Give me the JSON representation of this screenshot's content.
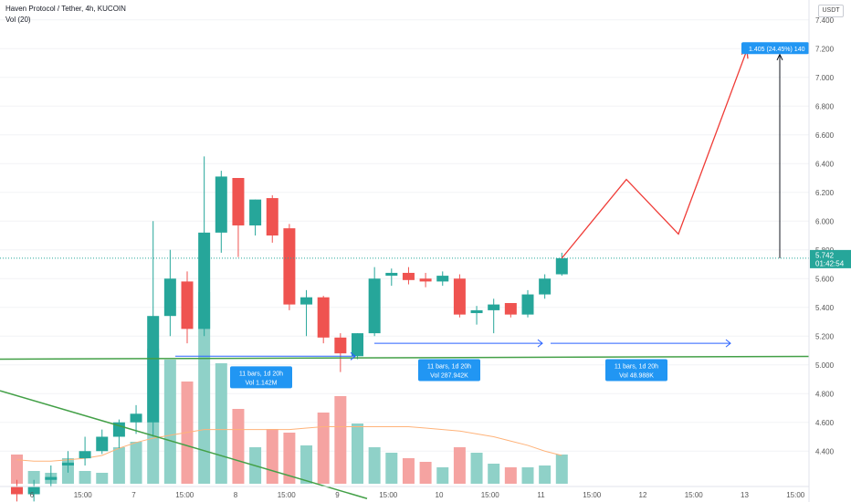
{
  "header": {
    "symbol_line": "Haven Protocol / Tether, 4h, KUCOIN",
    "indicator_line": "Vol (20)"
  },
  "currency_label": "USDT",
  "colors": {
    "up": "#26a69a",
    "down": "#ef5350",
    "up_volume": "#8fd1c8",
    "down_volume": "#f5a3a1",
    "accent_blue": "#2962ff",
    "label_blue": "#2196f3",
    "trend_green": "#43a047",
    "projection_red": "#ef3b36"
  },
  "chart_data": {
    "type": "candlestick",
    "y_ticks": [
      4.4,
      4.6,
      4.8,
      5.0,
      5.2,
      5.4,
      5.6,
      5.8,
      6.0,
      6.2,
      6.4,
      6.6,
      6.8,
      7.0,
      7.2,
      7.4
    ],
    "y_tick_labels": [
      "4.400",
      "4.600",
      "4.800",
      "5.000",
      "5.200",
      "5.400",
      "5.600",
      "5.800",
      "6.000",
      "6.200",
      "6.400",
      "6.600",
      "6.800",
      "7.000",
      "7.200",
      "7.400"
    ],
    "x_labels": [
      "6",
      "15:00",
      "7",
      "15:00",
      "8",
      "15:00",
      "9",
      "15:00",
      "10",
      "15:00",
      "11",
      "15:00",
      "12",
      "15:00",
      "13",
      "15:00"
    ],
    "candles": [
      {
        "o": 4.15,
        "h": 4.2,
        "l": 4.05,
        "c": 4.1
      },
      {
        "o": 4.1,
        "h": 4.2,
        "l": 4.05,
        "c": 4.15
      },
      {
        "o": 4.2,
        "h": 4.3,
        "l": 4.15,
        "c": 4.22
      },
      {
        "o": 4.3,
        "h": 4.4,
        "l": 4.25,
        "c": 4.32
      },
      {
        "o": 4.35,
        "h": 4.5,
        "l": 4.3,
        "c": 4.4
      },
      {
        "o": 4.4,
        "h": 4.55,
        "l": 4.38,
        "c": 4.5
      },
      {
        "o": 4.5,
        "h": 4.62,
        "l": 4.42,
        "c": 4.6
      },
      {
        "o": 4.6,
        "h": 4.72,
        "l": 4.52,
        "c": 4.66
      },
      {
        "o": 4.6,
        "h": 6.0,
        "l": 4.5,
        "c": 5.34
      },
      {
        "o": 5.34,
        "h": 5.8,
        "l": 5.2,
        "c": 5.6
      },
      {
        "o": 5.58,
        "h": 5.65,
        "l": 5.15,
        "c": 5.25
      },
      {
        "o": 5.25,
        "h": 6.45,
        "l": 5.2,
        "c": 5.92
      },
      {
        "o": 5.92,
        "h": 6.35,
        "l": 5.78,
        "c": 6.31
      },
      {
        "o": 6.3,
        "h": 6.3,
        "l": 5.75,
        "c": 5.97
      },
      {
        "o": 5.97,
        "h": 6.15,
        "l": 5.9,
        "c": 6.15
      },
      {
        "o": 6.16,
        "h": 6.18,
        "l": 5.85,
        "c": 5.9
      },
      {
        "o": 5.95,
        "h": 5.98,
        "l": 5.38,
        "c": 5.42
      },
      {
        "o": 5.42,
        "h": 5.52,
        "l": 5.2,
        "c": 5.47
      },
      {
        "o": 5.47,
        "h": 5.48,
        "l": 5.15,
        "c": 5.19
      },
      {
        "o": 5.19,
        "h": 5.22,
        "l": 4.95,
        "c": 5.08
      },
      {
        "o": 5.06,
        "h": 5.22,
        "l": 5.04,
        "c": 5.22
      },
      {
        "o": 5.22,
        "h": 5.68,
        "l": 5.2,
        "c": 5.6
      },
      {
        "o": 5.62,
        "h": 5.67,
        "l": 5.55,
        "c": 5.64
      },
      {
        "o": 5.64,
        "h": 5.68,
        "l": 5.56,
        "c": 5.59
      },
      {
        "o": 5.6,
        "h": 5.64,
        "l": 5.54,
        "c": 5.58
      },
      {
        "o": 5.58,
        "h": 5.65,
        "l": 5.55,
        "c": 5.62
      },
      {
        "o": 5.6,
        "h": 5.63,
        "l": 5.33,
        "c": 5.35
      },
      {
        "o": 5.36,
        "h": 5.41,
        "l": 5.28,
        "c": 5.38
      },
      {
        "o": 5.38,
        "h": 5.46,
        "l": 5.22,
        "c": 5.42
      },
      {
        "o": 5.43,
        "h": 5.43,
        "l": 5.33,
        "c": 5.35
      },
      {
        "o": 5.35,
        "h": 5.52,
        "l": 5.33,
        "c": 5.49
      },
      {
        "o": 5.49,
        "h": 5.63,
        "l": 5.46,
        "c": 5.6
      },
      {
        "o": 5.63,
        "h": 5.78,
        "l": 5.62,
        "c": 5.742
      }
    ],
    "volume": [
      32,
      14,
      12,
      28,
      14,
      12,
      40,
      46,
      148,
      136,
      112,
      210,
      132,
      82,
      40,
      60,
      56,
      42,
      78,
      96,
      66,
      40,
      34,
      28,
      24,
      18,
      40,
      34,
      22,
      18,
      18,
      20,
      32
    ],
    "volume_ma_levels": [
      4.34,
      4.33,
      4.33,
      4.34,
      4.35,
      4.37,
      4.42,
      4.46,
      4.49,
      4.51,
      4.53,
      4.55,
      4.55,
      4.55,
      4.55,
      4.55,
      4.55,
      4.56,
      4.57,
      4.57,
      4.57,
      4.57,
      4.57,
      4.57,
      4.56,
      4.55,
      4.54,
      4.52,
      4.5,
      4.47,
      4.44,
      4.4,
      4.37
    ],
    "current_price": {
      "value": "5.742",
      "countdown": "01:42:54"
    },
    "horizontal_support_level": 5.04,
    "projection_path": [
      5.742,
      6.29,
      5.91,
      7.19
    ],
    "measure_label": "1.405 (24.45%) 140",
    "range_labels": [
      {
        "bars": "11 bars, 1d 20h",
        "vol": "Vol 1.142M"
      },
      {
        "bars": "11 bars, 1d 20h",
        "vol": "Vol 287.942K"
      },
      {
        "bars": "11 bars, 1d 20h",
        "vol": "Vol 48.988K"
      }
    ]
  }
}
